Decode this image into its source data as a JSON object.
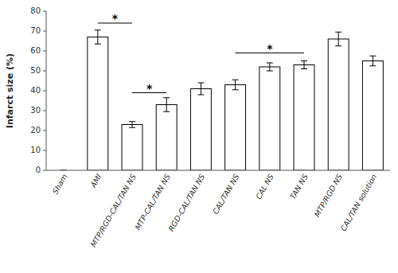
{
  "chart_data": {
    "type": "bar",
    "categories": [
      "Sham",
      "AMI",
      "MTP/RGD-CAL/TAN NS",
      "MTP-CAL/TAN NS",
      "RGD-CAL/TAN NS",
      "CAL/TAN NS",
      "CAL NS",
      "TAN NS",
      "MTP/RGD NS",
      "CAL/TAN solution"
    ],
    "values": [
      0,
      67,
      23,
      33,
      41,
      43,
      52,
      53,
      66,
      55
    ],
    "errors": [
      0,
      3.5,
      1.5,
      3.5,
      3.0,
      2.5,
      2.0,
      2.0,
      3.5,
      2.5
    ],
    "ylabel": "Infarct size (%)",
    "ylim": [
      0,
      80
    ],
    "yticks": [
      0,
      10,
      20,
      30,
      40,
      50,
      60,
      70,
      80
    ],
    "color": "white",
    "grid": false,
    "annotations": [
      {
        "text": "*",
        "from": "AMI",
        "to": "MTP/RGD-CAL/TAN NS",
        "y": 74
      },
      {
        "text": "*",
        "from": "MTP/RGD-CAL/TAN NS",
        "to": "MTP-CAL/TAN NS",
        "y": 39
      },
      {
        "text": "*",
        "from": "CAL/TAN NS",
        "to": "TAN NS",
        "y": 59
      }
    ]
  }
}
